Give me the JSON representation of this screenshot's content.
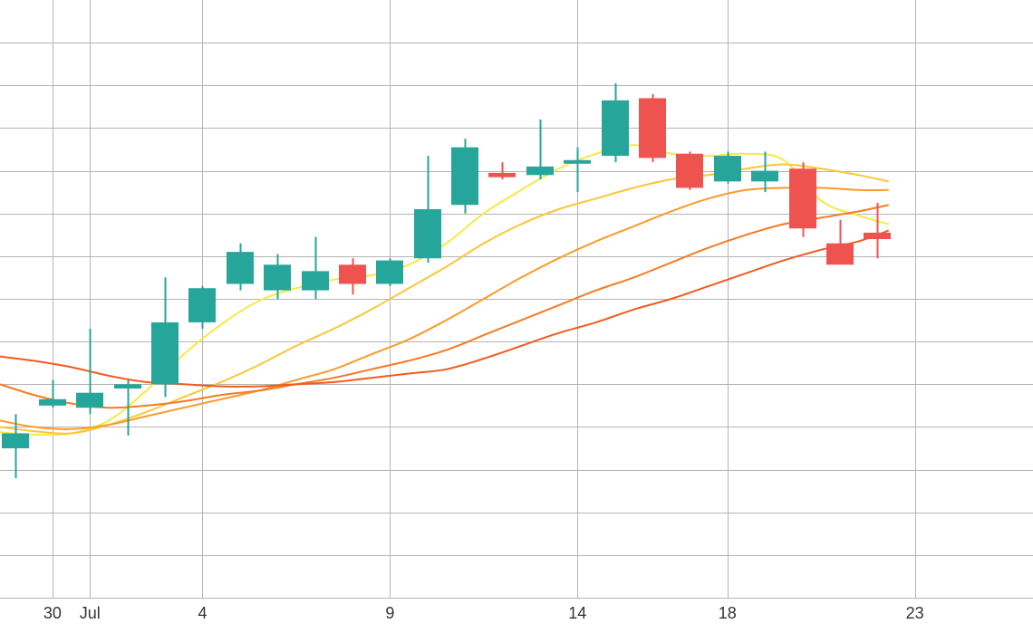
{
  "chart_data": {
    "type": "candlestick",
    "title": "",
    "xlabel": "",
    "ylabel": "",
    "grid": true,
    "x_ticks": [
      {
        "label": "30",
        "day": 0
      },
      {
        "label": "Jul",
        "day": 1
      },
      {
        "label": "4",
        "day": 4
      },
      {
        "label": "9",
        "day": 9
      },
      {
        "label": "14",
        "day": 14
      },
      {
        "label": "18",
        "day": 18
      },
      {
        "label": "23",
        "day": 23
      }
    ],
    "x_range": [
      -1.4,
      26.15
    ],
    "y_range": [
      0,
      14
    ],
    "y_grid_values": [
      1,
      2,
      3,
      4,
      5,
      6,
      7,
      8,
      9,
      10,
      11,
      12,
      13
    ],
    "colors": {
      "up": "#26a69a",
      "down": "#ef5350",
      "grid": "#b4b4b4",
      "text": "#333333",
      "background": "#ffffff"
    },
    "candles": [
      {
        "day": -1,
        "open": 3.5,
        "high": 4.3,
        "low": 2.8,
        "close": 3.85
      },
      {
        "day": 0,
        "open": 4.5,
        "high": 5.1,
        "low": 4.45,
        "close": 4.65
      },
      {
        "day": 1,
        "open": 4.45,
        "high": 6.3,
        "low": 4.3,
        "close": 4.8
      },
      {
        "day": 2,
        "open": 4.9,
        "high": 5.1,
        "low": 3.8,
        "close": 5.0
      },
      {
        "day": 3,
        "open": 5.0,
        "high": 7.5,
        "low": 4.7,
        "close": 6.45
      },
      {
        "day": 4,
        "open": 6.45,
        "high": 7.3,
        "low": 6.3,
        "close": 7.25
      },
      {
        "day": 5,
        "open": 7.35,
        "high": 8.3,
        "low": 7.2,
        "close": 8.1
      },
      {
        "day": 6,
        "open": 7.2,
        "high": 8.05,
        "low": 7.0,
        "close": 7.8
      },
      {
        "day": 7,
        "open": 7.2,
        "high": 8.45,
        "low": 7.0,
        "close": 7.65
      },
      {
        "day": 8,
        "open": 7.8,
        "high": 7.95,
        "low": 7.1,
        "close": 7.35
      },
      {
        "day": 9,
        "open": 7.35,
        "high": 7.95,
        "low": 7.3,
        "close": 7.9
      },
      {
        "day": 10,
        "open": 7.95,
        "high": 10.35,
        "low": 7.85,
        "close": 9.1
      },
      {
        "day": 11,
        "open": 9.2,
        "high": 10.75,
        "low": 9.0,
        "close": 10.55
      },
      {
        "day": 12,
        "open": 9.95,
        "high": 10.2,
        "low": 9.8,
        "close": 9.85
      },
      {
        "day": 13,
        "open": 9.9,
        "high": 11.2,
        "low": 9.8,
        "close": 10.1
      },
      {
        "day": 14,
        "open": 10.2,
        "high": 10.55,
        "low": 9.5,
        "close": 10.25
      },
      {
        "day": 15,
        "open": 10.35,
        "high": 12.05,
        "low": 10.2,
        "close": 11.65
      },
      {
        "day": 16,
        "open": 11.7,
        "high": 11.8,
        "low": 10.2,
        "close": 10.3
      },
      {
        "day": 17,
        "open": 10.4,
        "high": 10.45,
        "low": 9.55,
        "close": 9.6
      },
      {
        "day": 18,
        "open": 9.75,
        "high": 10.45,
        "low": 9.7,
        "close": 10.35
      },
      {
        "day": 19,
        "open": 9.75,
        "high": 10.45,
        "low": 9.5,
        "close": 10.0
      },
      {
        "day": 20,
        "open": 10.05,
        "high": 10.2,
        "low": 8.45,
        "close": 8.65
      },
      {
        "day": 21,
        "open": 8.3,
        "high": 8.85,
        "low": 7.85,
        "close": 7.8
      },
      {
        "day": 22,
        "open": 8.55,
        "high": 9.25,
        "low": 7.95,
        "close": 8.4
      }
    ],
    "series": [
      {
        "color": "#f5ea42",
        "points": [
          [
            -1.4,
            3.88
          ],
          [
            -0.5,
            3.82
          ],
          [
            0.5,
            3.85
          ],
          [
            1.5,
            4.15
          ],
          [
            2.5,
            4.85
          ],
          [
            3.5,
            5.7
          ],
          [
            4.5,
            6.4
          ],
          [
            5.5,
            6.95
          ],
          [
            6.5,
            7.25
          ],
          [
            7.5,
            7.45
          ],
          [
            8.5,
            7.55
          ],
          [
            9.5,
            7.8
          ],
          [
            10.5,
            8.3
          ],
          [
            11.5,
            9.0
          ],
          [
            12.5,
            9.55
          ],
          [
            13.5,
            10.05
          ],
          [
            14.5,
            10.4
          ],
          [
            15.5,
            10.6
          ],
          [
            16.5,
            10.4
          ],
          [
            17.5,
            10.35
          ],
          [
            18.5,
            10.4
          ],
          [
            19.5,
            10.25
          ],
          [
            20.5,
            9.3
          ],
          [
            21.5,
            8.95
          ],
          [
            22.3,
            8.75
          ]
        ]
      },
      {
        "color": "#fcc636",
        "points": [
          [
            -1.4,
            4.0
          ],
          [
            -0.5,
            3.9
          ],
          [
            0.5,
            3.85
          ],
          [
            1.5,
            4.05
          ],
          [
            2.5,
            4.35
          ],
          [
            3.5,
            4.7
          ],
          [
            4.5,
            5.05
          ],
          [
            5.5,
            5.45
          ],
          [
            6.5,
            5.9
          ],
          [
            7.5,
            6.3
          ],
          [
            8.5,
            6.75
          ],
          [
            9.5,
            7.25
          ],
          [
            10.5,
            7.75
          ],
          [
            11.5,
            8.3
          ],
          [
            12.5,
            8.75
          ],
          [
            13.5,
            9.1
          ],
          [
            14.5,
            9.35
          ],
          [
            15.5,
            9.6
          ],
          [
            16.5,
            9.8
          ],
          [
            17.5,
            9.9
          ],
          [
            18.5,
            10.05
          ],
          [
            19.5,
            10.15
          ],
          [
            20.5,
            10.05
          ],
          [
            21.5,
            9.9
          ],
          [
            22.3,
            9.75
          ]
        ]
      },
      {
        "color": "#fb9b2a",
        "points": [
          [
            -1.4,
            4.15
          ],
          [
            -0.5,
            4.0
          ],
          [
            0.5,
            3.95
          ],
          [
            1.5,
            4.05
          ],
          [
            2.5,
            4.25
          ],
          [
            3.5,
            4.45
          ],
          [
            4.5,
            4.65
          ],
          [
            5.5,
            4.85
          ],
          [
            6.5,
            5.1
          ],
          [
            7.5,
            5.35
          ],
          [
            8.5,
            5.7
          ],
          [
            9.5,
            6.05
          ],
          [
            10.5,
            6.5
          ],
          [
            11.5,
            7.0
          ],
          [
            12.5,
            7.5
          ],
          [
            13.5,
            7.95
          ],
          [
            14.5,
            8.35
          ],
          [
            15.5,
            8.7
          ],
          [
            16.5,
            9.05
          ],
          [
            17.5,
            9.35
          ],
          [
            18.5,
            9.55
          ],
          [
            19.5,
            9.6
          ],
          [
            20.5,
            9.6
          ],
          [
            21.5,
            9.55
          ],
          [
            22.3,
            9.55
          ]
        ]
      },
      {
        "color": "#f77b22",
        "points": [
          [
            -1.4,
            5.0
          ],
          [
            -0.5,
            4.75
          ],
          [
            0.5,
            4.55
          ],
          [
            1.5,
            4.45
          ],
          [
            2.5,
            4.5
          ],
          [
            3.5,
            4.6
          ],
          [
            4.5,
            4.75
          ],
          [
            5.5,
            4.85
          ],
          [
            6.5,
            5.0
          ],
          [
            7.5,
            5.15
          ],
          [
            8.5,
            5.35
          ],
          [
            9.5,
            5.55
          ],
          [
            10.5,
            5.8
          ],
          [
            11.5,
            6.15
          ],
          [
            12.5,
            6.5
          ],
          [
            13.5,
            6.85
          ],
          [
            14.5,
            7.2
          ],
          [
            15.5,
            7.5
          ],
          [
            16.5,
            7.85
          ],
          [
            17.5,
            8.2
          ],
          [
            18.5,
            8.5
          ],
          [
            19.5,
            8.75
          ],
          [
            20.5,
            8.9
          ],
          [
            21.5,
            9.05
          ],
          [
            22.3,
            9.2
          ]
        ]
      },
      {
        "color": "#f45a1e",
        "points": [
          [
            -1.4,
            5.65
          ],
          [
            -0.5,
            5.55
          ],
          [
            0.5,
            5.4
          ],
          [
            1.5,
            5.2
          ],
          [
            2.5,
            5.05
          ],
          [
            3.5,
            5.0
          ],
          [
            4.5,
            4.95
          ],
          [
            5.5,
            4.95
          ],
          [
            6.5,
            5.0
          ],
          [
            7.5,
            5.05
          ],
          [
            8.5,
            5.15
          ],
          [
            9.5,
            5.25
          ],
          [
            10.5,
            5.35
          ],
          [
            11.5,
            5.6
          ],
          [
            12.5,
            5.9
          ],
          [
            13.5,
            6.2
          ],
          [
            14.5,
            6.45
          ],
          [
            15.5,
            6.75
          ],
          [
            16.5,
            7.0
          ],
          [
            17.5,
            7.3
          ],
          [
            18.5,
            7.6
          ],
          [
            19.5,
            7.9
          ],
          [
            20.5,
            8.15
          ],
          [
            21.5,
            8.35
          ],
          [
            22.3,
            8.6
          ]
        ]
      }
    ]
  }
}
